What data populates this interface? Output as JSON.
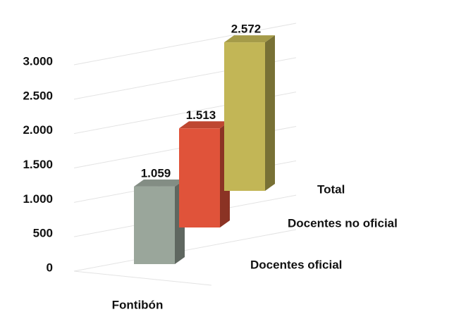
{
  "chart_data": {
    "type": "bar3d",
    "categories": [
      "Fontibón"
    ],
    "series": [
      {
        "name": "Docentes oficial",
        "color": "#9aa69b",
        "values": [
          1059
        ],
        "value_labels": [
          "1.059"
        ]
      },
      {
        "name": "Docentes no oficial",
        "color": "#e0533a",
        "values": [
          1513
        ],
        "value_labels": [
          "1.513"
        ]
      },
      {
        "name": "Total",
        "color": "#c2b656",
        "values": [
          2572
        ],
        "value_labels": [
          "2.572"
        ]
      }
    ],
    "ylim": [
      0,
      3000
    ],
    "yticks": [
      {
        "value": 0,
        "label": "0"
      },
      {
        "value": 500,
        "label": "500"
      },
      {
        "value": 1000,
        "label": "1.000"
      },
      {
        "value": 1500,
        "label": "1.500"
      },
      {
        "value": 2000,
        "label": "2.000"
      },
      {
        "value": 2500,
        "label": "2.500"
      },
      {
        "value": 3000,
        "label": "3.000"
      }
    ],
    "grid": true
  }
}
